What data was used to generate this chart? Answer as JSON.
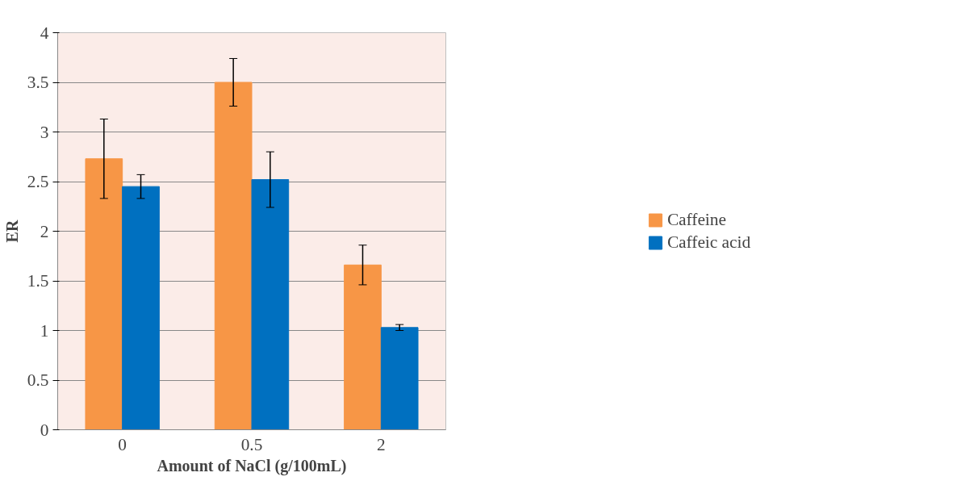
{
  "chart_data": {
    "type": "bar",
    "xlabel": "Amount of NaCl (g/100mL)",
    "ylabel": "ER",
    "categories": [
      "0",
      "0.5",
      "2"
    ],
    "series": [
      {
        "name": "Caffeine",
        "color": "#f79646",
        "values": [
          2.73,
          3.5,
          1.66
        ],
        "errors": [
          0.4,
          0.24,
          0.2
        ]
      },
      {
        "name": "Caffeic acid",
        "color": "#0070c0",
        "values": [
          2.45,
          2.52,
          1.03
        ],
        "errors": [
          0.12,
          0.28,
          0.03
        ]
      }
    ],
    "ylim": [
      0,
      4
    ],
    "yticks": [
      0,
      0.5,
      1,
      1.5,
      2,
      2.5,
      3,
      3.5,
      4
    ],
    "grid": "y",
    "legend": "right"
  }
}
